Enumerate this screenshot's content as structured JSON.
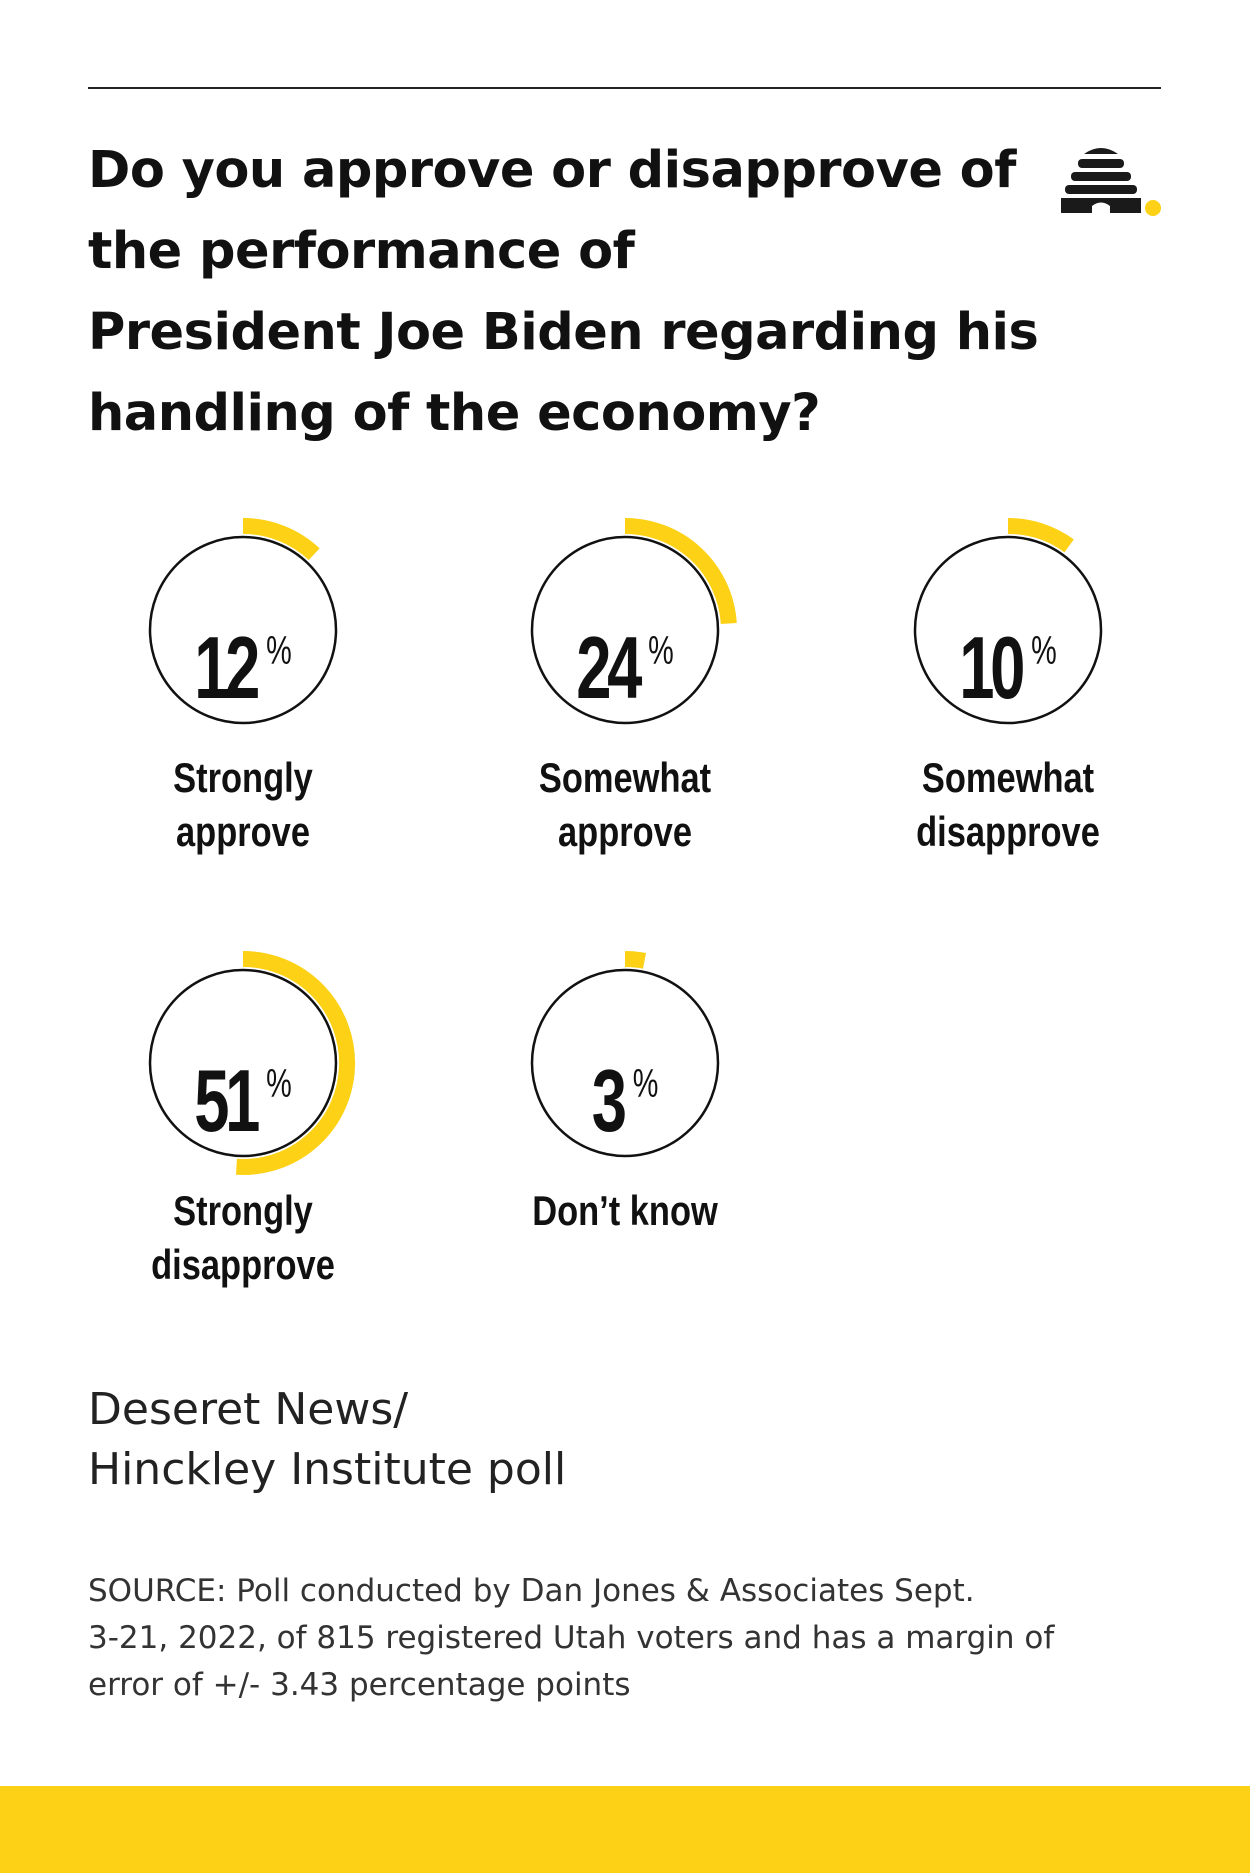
{
  "title_lines": [
    "Do you approve or disapprove of",
    "the performance of",
    "President Joe Biden regarding his",
    "handling of the economy?"
  ],
  "chart_data": {
    "type": "radial-gauge",
    "title": "Do you approve or disapprove of the performance of President Joe Biden regarding his handling of the economy?",
    "unit": "%",
    "categories": [
      "Strongly approve",
      "Somewhat approve",
      "Somewhat disapprove",
      "Strongly disapprove",
      "Don’t know"
    ],
    "values": [
      12,
      24,
      10,
      51,
      3
    ]
  },
  "gauges": [
    {
      "value": "12",
      "pct": "%",
      "label_lines": [
        "Strongly",
        "approve"
      ]
    },
    {
      "value": "24",
      "pct": "%",
      "label_lines": [
        "Somewhat",
        "approve"
      ]
    },
    {
      "value": "10",
      "pct": "%",
      "label_lines": [
        "Somewhat",
        "disapprove"
      ]
    },
    {
      "value": "51",
      "pct": "%",
      "label_lines": [
        "Strongly",
        "disapprove"
      ]
    },
    {
      "value": "3",
      "pct": "%",
      "label_lines": [
        "Don’t know"
      ]
    }
  ],
  "poll_name_lines": [
    "Deseret News/",
    "Hinckley Institute poll"
  ],
  "source_lines": [
    "SOURCE: Poll conducted by Dan Jones & Associates Sept.",
    "3-21, 2022, of 815 registered Utah voters and has a margin of",
    "error of +/- 3.43 percentage points"
  ],
  "colors": {
    "accent": "#fcd116",
    "text": "#111111",
    "ring": "#111111"
  },
  "logo": {
    "icon": "beehive-logo-icon"
  }
}
